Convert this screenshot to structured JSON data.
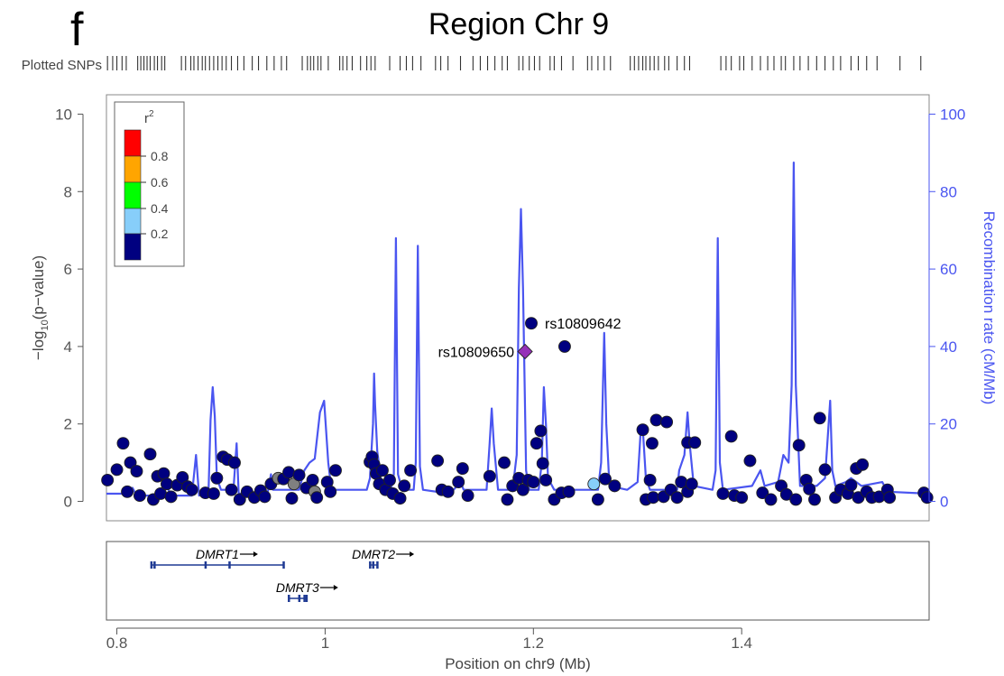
{
  "panel_letter": "f",
  "chart_data": {
    "type": "scatter",
    "title": "Region Chr 9",
    "xlabel": "Position on chr9 (Mb)",
    "ylabel_prefix": "−log",
    "ylabel_sub": "10",
    "ylabel_suffix": "(p−value)",
    "y2label": "Recombination rate (cM/Mb)",
    "plotted_snps_label": "Plotted SNPs",
    "xlim": [
      0.79,
      1.58
    ],
    "ylim": [
      -0.5,
      10.5
    ],
    "y2lim": [
      -5,
      105
    ],
    "x_ticks": [
      0.8,
      1.0,
      1.2,
      1.4
    ],
    "x_tick_labels": [
      "0.8",
      "1",
      "1.2",
      "1.4"
    ],
    "y_ticks": [
      0,
      2,
      4,
      6,
      8,
      10
    ],
    "y_tick_labels": [
      "0",
      "2",
      "4",
      "6",
      "8",
      "10"
    ],
    "y2_ticks": [
      0,
      20,
      40,
      60,
      80,
      100
    ],
    "y2_tick_labels": [
      "0",
      "20",
      "40",
      "60",
      "80",
      "100"
    ],
    "colors": {
      "r2_lt_0.2": "#000080",
      "r2_0.2_0.4": "#87CEFA",
      "r2_0.4_0.6": "#00FF00",
      "r2_0.6_0.8": "#FFA500",
      "r2_gt_0.8": "#FF0000",
      "na": "#808080",
      "lead": "#9632B8",
      "recomb": "#4A55F0"
    },
    "legend": {
      "title": "r",
      "title_sup": "2",
      "tick_labels": [
        "0.8",
        "0.6",
        "0.4",
        "0.2"
      ],
      "position": "top-left"
    },
    "snps": [
      {
        "x": 0.791,
        "y": 0.55,
        "c": "d"
      },
      {
        "x": 0.8,
        "y": 0.82,
        "c": "d"
      },
      {
        "x": 0.806,
        "y": 1.5,
        "c": "d"
      },
      {
        "x": 0.81,
        "y": 0.25,
        "c": "d"
      },
      {
        "x": 0.813,
        "y": 1.0,
        "c": "d"
      },
      {
        "x": 0.819,
        "y": 0.78,
        "c": "d"
      },
      {
        "x": 0.822,
        "y": 0.15,
        "c": "d"
      },
      {
        "x": 0.832,
        "y": 1.22,
        "c": "d"
      },
      {
        "x": 0.835,
        "y": 0.05,
        "c": "d"
      },
      {
        "x": 0.839,
        "y": 0.65,
        "c": "d"
      },
      {
        "x": 0.842,
        "y": 0.2,
        "c": "d"
      },
      {
        "x": 0.845,
        "y": 0.72,
        "c": "d"
      },
      {
        "x": 0.848,
        "y": 0.45,
        "c": "d"
      },
      {
        "x": 0.852,
        "y": 0.12,
        "c": "d"
      },
      {
        "x": 0.858,
        "y": 0.42,
        "c": "d"
      },
      {
        "x": 0.863,
        "y": 0.62,
        "c": "d"
      },
      {
        "x": 0.868,
        "y": 0.38,
        "c": "d"
      },
      {
        "x": 0.872,
        "y": 0.3,
        "c": "d"
      },
      {
        "x": 0.885,
        "y": 0.22,
        "c": "d"
      },
      {
        "x": 0.893,
        "y": 0.2,
        "c": "d"
      },
      {
        "x": 0.896,
        "y": 0.6,
        "c": "d"
      },
      {
        "x": 0.902,
        "y": 1.15,
        "c": "d"
      },
      {
        "x": 0.906,
        "y": 1.08,
        "c": "d"
      },
      {
        "x": 0.91,
        "y": 0.3,
        "c": "d"
      },
      {
        "x": 0.913,
        "y": 1.0,
        "c": "d"
      },
      {
        "x": 0.918,
        "y": 0.05,
        "c": "d"
      },
      {
        "x": 0.925,
        "y": 0.25,
        "c": "d"
      },
      {
        "x": 0.932,
        "y": 0.1,
        "c": "d"
      },
      {
        "x": 0.938,
        "y": 0.28,
        "c": "d"
      },
      {
        "x": 0.942,
        "y": 0.12,
        "c": "d"
      },
      {
        "x": 0.948,
        "y": 0.45,
        "c": "d"
      },
      {
        "x": 0.955,
        "y": 0.6,
        "c": "g"
      },
      {
        "x": 0.96,
        "y": 0.58,
        "c": "d"
      },
      {
        "x": 0.965,
        "y": 0.75,
        "c": "d"
      },
      {
        "x": 0.97,
        "y": 0.45,
        "c": "g"
      },
      {
        "x": 0.968,
        "y": 0.08,
        "c": "d"
      },
      {
        "x": 0.975,
        "y": 0.68,
        "c": "d"
      },
      {
        "x": 0.982,
        "y": 0.35,
        "c": "d"
      },
      {
        "x": 0.988,
        "y": 0.55,
        "c": "d"
      },
      {
        "x": 0.99,
        "y": 0.25,
        "c": "g"
      },
      {
        "x": 0.992,
        "y": 0.1,
        "c": "d"
      },
      {
        "x": 1.002,
        "y": 0.5,
        "c": "d"
      },
      {
        "x": 1.005,
        "y": 0.25,
        "c": "d"
      },
      {
        "x": 1.01,
        "y": 0.8,
        "c": "d"
      },
      {
        "x": 1.043,
        "y": 1.02,
        "c": "d"
      },
      {
        "x": 1.045,
        "y": 1.15,
        "c": "d"
      },
      {
        "x": 1.047,
        "y": 0.95,
        "c": "d"
      },
      {
        "x": 1.049,
        "y": 0.72,
        "c": "d"
      },
      {
        "x": 1.052,
        "y": 0.45,
        "c": "d"
      },
      {
        "x": 1.055,
        "y": 0.8,
        "c": "d"
      },
      {
        "x": 1.058,
        "y": 0.3,
        "c": "d"
      },
      {
        "x": 1.062,
        "y": 0.55,
        "c": "d"
      },
      {
        "x": 1.065,
        "y": 0.2,
        "c": "d"
      },
      {
        "x": 1.072,
        "y": 0.08,
        "c": "d"
      },
      {
        "x": 1.076,
        "y": 0.4,
        "c": "d"
      },
      {
        "x": 1.082,
        "y": 0.8,
        "c": "d"
      },
      {
        "x": 1.108,
        "y": 1.05,
        "c": "d"
      },
      {
        "x": 1.112,
        "y": 0.3,
        "c": "d"
      },
      {
        "x": 1.118,
        "y": 0.25,
        "c": "d"
      },
      {
        "x": 1.128,
        "y": 0.5,
        "c": "d"
      },
      {
        "x": 1.132,
        "y": 0.85,
        "c": "d"
      },
      {
        "x": 1.137,
        "y": 0.15,
        "c": "d"
      },
      {
        "x": 1.158,
        "y": 0.65,
        "c": "d"
      },
      {
        "x": 1.172,
        "y": 1.0,
        "c": "d"
      },
      {
        "x": 1.175,
        "y": 0.05,
        "c": "d"
      },
      {
        "x": 1.18,
        "y": 0.4,
        "c": "d"
      },
      {
        "x": 1.186,
        "y": 0.6,
        "c": "d"
      },
      {
        "x": 1.19,
        "y": 0.3,
        "c": "d"
      },
      {
        "x": 1.195,
        "y": 0.55,
        "c": "d"
      },
      {
        "x": 1.2,
        "y": 0.5,
        "c": "d"
      },
      {
        "x": 1.203,
        "y": 1.5,
        "c": "d"
      },
      {
        "x": 1.207,
        "y": 1.82,
        "c": "d"
      },
      {
        "x": 1.209,
        "y": 0.98,
        "c": "d"
      },
      {
        "x": 1.212,
        "y": 0.55,
        "c": "d"
      },
      {
        "x": 1.22,
        "y": 0.05,
        "c": "d"
      },
      {
        "x": 1.227,
        "y": 0.22,
        "c": "d"
      },
      {
        "x": 1.234,
        "y": 0.25,
        "c": "d"
      },
      {
        "x": 1.258,
        "y": 0.45,
        "c": "lb"
      },
      {
        "x": 1.262,
        "y": 0.05,
        "c": "d"
      },
      {
        "x": 1.269,
        "y": 0.58,
        "c": "d"
      },
      {
        "x": 1.278,
        "y": 0.4,
        "c": "d"
      },
      {
        "x": 1.305,
        "y": 1.85,
        "c": "d"
      },
      {
        "x": 1.308,
        "y": 0.05,
        "c": "d"
      },
      {
        "x": 1.312,
        "y": 0.55,
        "c": "d"
      },
      {
        "x": 1.315,
        "y": 0.1,
        "c": "d"
      },
      {
        "x": 1.314,
        "y": 1.5,
        "c": "d"
      },
      {
        "x": 1.318,
        "y": 2.1,
        "c": "d"
      },
      {
        "x": 1.325,
        "y": 0.12,
        "c": "d"
      },
      {
        "x": 1.328,
        "y": 2.05,
        "c": "d"
      },
      {
        "x": 1.332,
        "y": 0.3,
        "c": "d"
      },
      {
        "x": 1.338,
        "y": 0.1,
        "c": "d"
      },
      {
        "x": 1.342,
        "y": 0.5,
        "c": "d"
      },
      {
        "x": 1.348,
        "y": 0.25,
        "c": "d"
      },
      {
        "x": 1.348,
        "y": 1.52,
        "c": "d"
      },
      {
        "x": 1.355,
        "y": 1.52,
        "c": "d"
      },
      {
        "x": 1.352,
        "y": 0.45,
        "c": "d"
      },
      {
        "x": 1.382,
        "y": 0.2,
        "c": "d"
      },
      {
        "x": 1.39,
        "y": 1.68,
        "c": "d"
      },
      {
        "x": 1.393,
        "y": 0.15,
        "c": "d"
      },
      {
        "x": 1.4,
        "y": 0.1,
        "c": "d"
      },
      {
        "x": 1.408,
        "y": 1.05,
        "c": "d"
      },
      {
        "x": 1.42,
        "y": 0.22,
        "c": "d"
      },
      {
        "x": 1.428,
        "y": 0.05,
        "c": "d"
      },
      {
        "x": 1.438,
        "y": 0.4,
        "c": "d"
      },
      {
        "x": 1.443,
        "y": 0.18,
        "c": "d"
      },
      {
        "x": 1.452,
        "y": 0.05,
        "c": "d"
      },
      {
        "x": 1.455,
        "y": 1.45,
        "c": "d"
      },
      {
        "x": 1.462,
        "y": 0.55,
        "c": "d"
      },
      {
        "x": 1.465,
        "y": 0.32,
        "c": "d"
      },
      {
        "x": 1.47,
        "y": 0.05,
        "c": "d"
      },
      {
        "x": 1.475,
        "y": 2.15,
        "c": "d"
      },
      {
        "x": 1.48,
        "y": 0.82,
        "c": "d"
      },
      {
        "x": 1.49,
        "y": 0.1,
        "c": "d"
      },
      {
        "x": 1.495,
        "y": 0.3,
        "c": "d"
      },
      {
        "x": 1.502,
        "y": 0.2,
        "c": "d"
      },
      {
        "x": 1.505,
        "y": 0.42,
        "c": "d"
      },
      {
        "x": 1.51,
        "y": 0.85,
        "c": "d"
      },
      {
        "x": 1.512,
        "y": 0.1,
        "c": "d"
      },
      {
        "x": 1.516,
        "y": 0.95,
        "c": "d"
      },
      {
        "x": 1.52,
        "y": 0.25,
        "c": "d"
      },
      {
        "x": 1.525,
        "y": 0.1,
        "c": "d"
      },
      {
        "x": 1.532,
        "y": 0.12,
        "c": "d"
      },
      {
        "x": 1.54,
        "y": 0.3,
        "c": "d"
      },
      {
        "x": 1.542,
        "y": 0.1,
        "c": "d"
      },
      {
        "x": 1.575,
        "y": 0.22,
        "c": "d"
      },
      {
        "x": 1.578,
        "y": 0.1,
        "c": "d"
      }
    ],
    "labeled_snps": [
      {
        "label": "rs10809642",
        "x": 1.198,
        "y": 4.6,
        "c": "d",
        "label_side": "right"
      },
      {
        "label": "rs10809650",
        "x": 1.192,
        "y": 3.87,
        "c": "lead",
        "label_side": "left"
      },
      {
        "label": "",
        "x": 1.23,
        "y": 4.0,
        "c": "d"
      }
    ],
    "recomb": [
      [
        0.79,
        2
      ],
      [
        0.808,
        2
      ],
      [
        0.812,
        3
      ],
      [
        0.815,
        3.5
      ],
      [
        0.818,
        2
      ],
      [
        0.825,
        1.5
      ],
      [
        0.842,
        1.5
      ],
      [
        0.848,
        4
      ],
      [
        0.852,
        1.5
      ],
      [
        0.872,
        1.5
      ],
      [
        0.876,
        12
      ],
      [
        0.879,
        1.5
      ],
      [
        0.888,
        2
      ],
      [
        0.89,
        21
      ],
      [
        0.892,
        29.5
      ],
      [
        0.894,
        22
      ],
      [
        0.896,
        6
      ],
      [
        0.9,
        3
      ],
      [
        0.912,
        3
      ],
      [
        0.915,
        15
      ],
      [
        0.917,
        2
      ],
      [
        0.94,
        2.5
      ],
      [
        0.945,
        2.5
      ],
      [
        0.948,
        7
      ],
      [
        0.95,
        3
      ],
      [
        0.975,
        3
      ],
      [
        0.98,
        8
      ],
      [
        0.985,
        10
      ],
      [
        0.99,
        11
      ],
      [
        0.995,
        23
      ],
      [
        0.999,
        26
      ],
      [
        1.003,
        10
      ],
      [
        1.006,
        3
      ],
      [
        1.04,
        3
      ],
      [
        1.043,
        6
      ],
      [
        1.046,
        20
      ],
      [
        1.047,
        33
      ],
      [
        1.048,
        25
      ],
      [
        1.05,
        13
      ],
      [
        1.055,
        3
      ],
      [
        1.063,
        3
      ],
      [
        1.066,
        7
      ],
      [
        1.068,
        68
      ],
      [
        1.07,
        7
      ],
      [
        1.074,
        3
      ],
      [
        1.085,
        3
      ],
      [
        1.087,
        10
      ],
      [
        1.089,
        66
      ],
      [
        1.091,
        9
      ],
      [
        1.094,
        3
      ],
      [
        1.12,
        2
      ],
      [
        1.13,
        5
      ],
      [
        1.133,
        3
      ],
      [
        1.155,
        3
      ],
      [
        1.158,
        15
      ],
      [
        1.16,
        24
      ],
      [
        1.162,
        15
      ],
      [
        1.166,
        3
      ],
      [
        1.18,
        3
      ],
      [
        1.184,
        12
      ],
      [
        1.186,
        55
      ],
      [
        1.188,
        75.5
      ],
      [
        1.19,
        55
      ],
      [
        1.193,
        8
      ],
      [
        1.196,
        3
      ],
      [
        1.205,
        3
      ],
      [
        1.208,
        10
      ],
      [
        1.21,
        29.5
      ],
      [
        1.212,
        20
      ],
      [
        1.214,
        6
      ],
      [
        1.22,
        3
      ],
      [
        1.262,
        3
      ],
      [
        1.265,
        10
      ],
      [
        1.268,
        43.5
      ],
      [
        1.27,
        20
      ],
      [
        1.273,
        4
      ],
      [
        1.29,
        3
      ],
      [
        1.3,
        5
      ],
      [
        1.303,
        18
      ],
      [
        1.305,
        19
      ],
      [
        1.308,
        6
      ],
      [
        1.312,
        3
      ],
      [
        1.338,
        3
      ],
      [
        1.34,
        8
      ],
      [
        1.345,
        12
      ],
      [
        1.348,
        23
      ],
      [
        1.35,
        15
      ],
      [
        1.354,
        4
      ],
      [
        1.372,
        3
      ],
      [
        1.375,
        8
      ],
      [
        1.377,
        68
      ],
      [
        1.379,
        10
      ],
      [
        1.382,
        3
      ],
      [
        1.41,
        4
      ],
      [
        1.418,
        8
      ],
      [
        1.422,
        4
      ],
      [
        1.435,
        5
      ],
      [
        1.44,
        12
      ],
      [
        1.445,
        10
      ],
      [
        1.448,
        30
      ],
      [
        1.45,
        87.5
      ],
      [
        1.452,
        30
      ],
      [
        1.456,
        4
      ],
      [
        1.472,
        4
      ],
      [
        1.48,
        6
      ],
      [
        1.485,
        26
      ],
      [
        1.487,
        8
      ],
      [
        1.49,
        4
      ],
      [
        1.5,
        5
      ],
      [
        1.505,
        6
      ],
      [
        1.515,
        4
      ],
      [
        1.535,
        5
      ],
      [
        1.54,
        2.5
      ],
      [
        1.58,
        2
      ]
    ],
    "plotted_snp_positions": [
      0.791,
      0.796,
      0.8,
      0.805,
      0.809,
      0.82,
      0.823,
      0.826,
      0.829,
      0.832,
      0.836,
      0.839,
      0.843,
      0.846,
      0.862,
      0.866,
      0.871,
      0.874,
      0.878,
      0.882,
      0.885,
      0.889,
      0.893,
      0.897,
      0.901,
      0.905,
      0.91,
      0.916,
      0.922,
      0.93,
      0.936,
      0.944,
      0.951,
      0.958,
      0.963,
      0.978,
      0.983,
      0.986,
      0.989,
      0.993,
      0.996,
      1.003,
      1.014,
      1.017,
      1.021,
      1.026,
      1.034,
      1.04,
      1.044,
      1.048,
      1.062,
      1.072,
      1.078,
      1.084,
      1.092,
      1.106,
      1.111,
      1.118,
      1.13,
      1.142,
      1.149,
      1.156,
      1.163,
      1.17,
      1.175,
      1.186,
      1.19,
      1.196,
      1.201,
      1.206,
      1.216,
      1.22,
      1.227,
      1.238,
      1.252,
      1.256,
      1.262,
      1.268,
      1.274,
      1.293,
      1.297,
      1.301,
      1.305,
      1.308,
      1.312,
      1.316,
      1.32,
      1.326,
      1.33,
      1.338,
      1.345,
      1.35,
      1.38,
      1.385,
      1.39,
      1.398,
      1.402,
      1.41,
      1.418,
      1.425,
      1.431,
      1.438,
      1.442,
      1.45,
      1.456,
      1.464,
      1.472,
      1.48,
      1.488,
      1.495,
      1.505,
      1.512,
      1.52,
      1.53,
      1.552,
      1.572
    ],
    "genes": [
      {
        "name": "DMRT1",
        "start": 0.833,
        "end": 0.96,
        "row": 0,
        "exons": [
          0.833,
          0.836,
          0.885,
          0.908,
          0.96
        ]
      },
      {
        "name": "DMRT2",
        "start": 1.043,
        "end": 1.05,
        "row": 0,
        "exons": [
          1.043,
          1.046,
          1.05
        ]
      },
      {
        "name": "DMRT3",
        "start": 0.965,
        "end": 0.982,
        "row": 1,
        "exons": [
          0.965,
          0.975,
          0.98,
          0.982
        ]
      }
    ]
  }
}
